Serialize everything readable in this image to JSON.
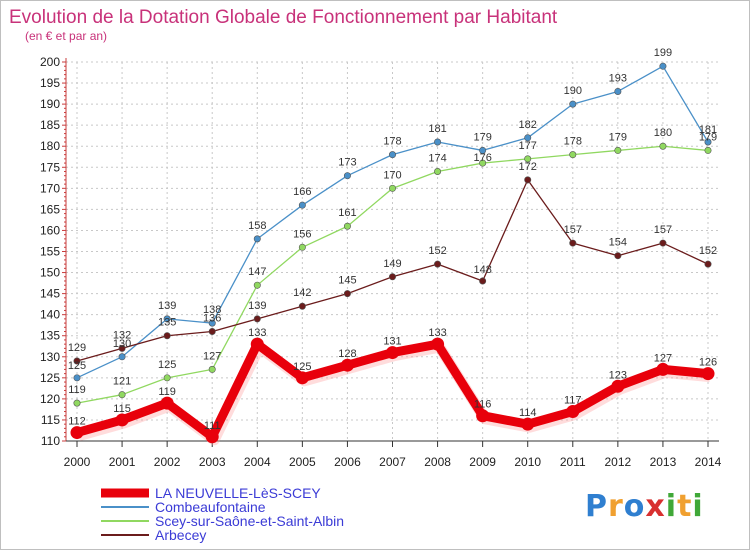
{
  "chart_data": {
    "type": "line",
    "title": "Evolution de la Dotation Globale de Fonctionnement par Habitant",
    "subtitle": "(en € et par an)",
    "xlabel": "",
    "ylabel": "",
    "ylim": [
      110,
      200
    ],
    "y_ticks": [
      110,
      115,
      120,
      125,
      130,
      135,
      140,
      145,
      150,
      155,
      160,
      165,
      170,
      175,
      180,
      185,
      190,
      195,
      200
    ],
    "categories": [
      "2000",
      "2001",
      "2002",
      "2003",
      "2004",
      "2005",
      "2006",
      "2007",
      "2008",
      "2009",
      "2010",
      "2011",
      "2012",
      "2013",
      "2014"
    ],
    "grid": true,
    "legend_position": "bottom-left",
    "series": [
      {
        "name": "LA NEUVELLE-LèS-SCEY",
        "color": "#e8000b",
        "values": [
          112,
          115,
          119,
          111,
          133,
          125,
          128,
          131,
          133,
          116,
          114,
          117,
          123,
          127,
          126
        ]
      },
      {
        "name": "Combeaufontaine",
        "color": "#4a90c8",
        "values": [
          125,
          130,
          139,
          138,
          158,
          166,
          173,
          178,
          181,
          179,
          182,
          190,
          193,
          199,
          181
        ]
      },
      {
        "name": "Scey-sur-Saône-et-Saint-Albin",
        "color": "#90d860",
        "values": [
          119,
          121,
          125,
          127,
          147,
          156,
          161,
          170,
          174,
          176,
          177,
          178,
          179,
          180,
          179
        ]
      },
      {
        "name": "Arbecey",
        "color": "#6b1c1c",
        "values": [
          129,
          132,
          135,
          136,
          139,
          142,
          145,
          149,
          152,
          148,
          172,
          157,
          154,
          157,
          152
        ]
      }
    ]
  },
  "logo": {
    "text": [
      "P",
      "r",
      "o",
      "x",
      "i",
      "t",
      "i"
    ],
    "colors": [
      "#2f7fd0",
      "#f0a030",
      "#2f7fd0",
      "#d83030",
      "#40a838",
      "#f0a030",
      "#40a838"
    ]
  }
}
